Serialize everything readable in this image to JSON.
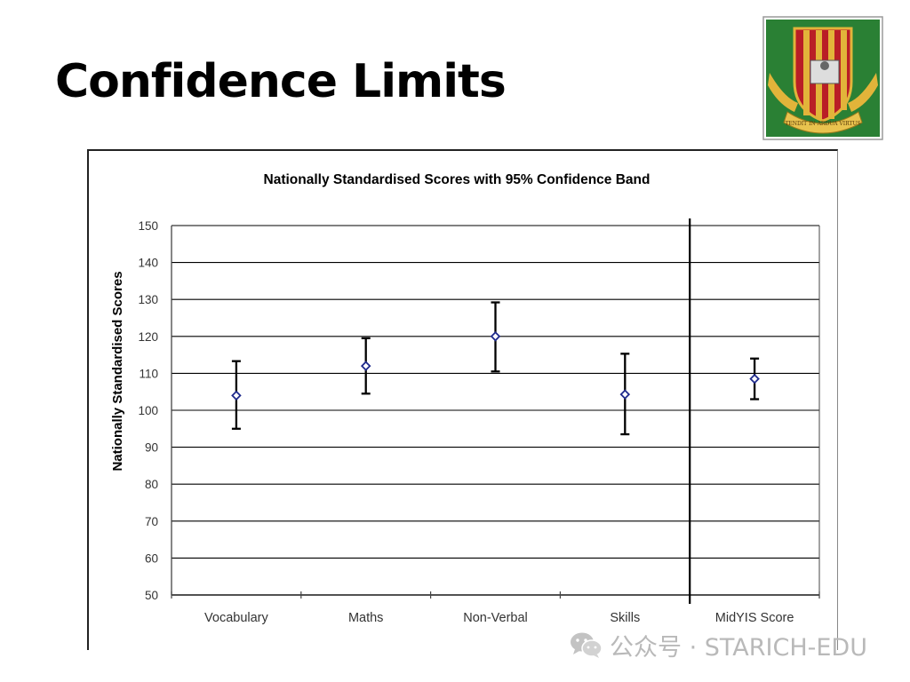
{
  "slide": {
    "title": "Confidence Limits",
    "watermark_text": "公众号 · STARICH-EDU"
  },
  "crest": {
    "motto": "TENDIT IN ARDUA VIRTUS"
  },
  "chart_data": {
    "type": "scatter",
    "title": "Nationally Standardised Scores with 95% Confidence Band",
    "xlabel": "",
    "ylabel": "Nationally Standardised Scores",
    "ylim": [
      50,
      150
    ],
    "yticks": [
      50,
      60,
      70,
      80,
      90,
      100,
      110,
      120,
      130,
      140,
      150
    ],
    "grid": true,
    "categories": [
      "Vocabulary",
      "Maths",
      "Non-Verbal",
      "Skills",
      "MidYIS Score"
    ],
    "values": [
      104,
      112,
      120,
      104.3,
      108.5
    ],
    "lower": [
      95,
      104.5,
      110.5,
      93.5,
      103
    ],
    "upper": [
      113.3,
      119.5,
      129.2,
      115.3,
      114
    ],
    "separator_before_category": "MidYIS Score",
    "colors": {
      "marker": "#1f2a8c",
      "error_bar": "#000000",
      "grid": "#000000"
    }
  }
}
